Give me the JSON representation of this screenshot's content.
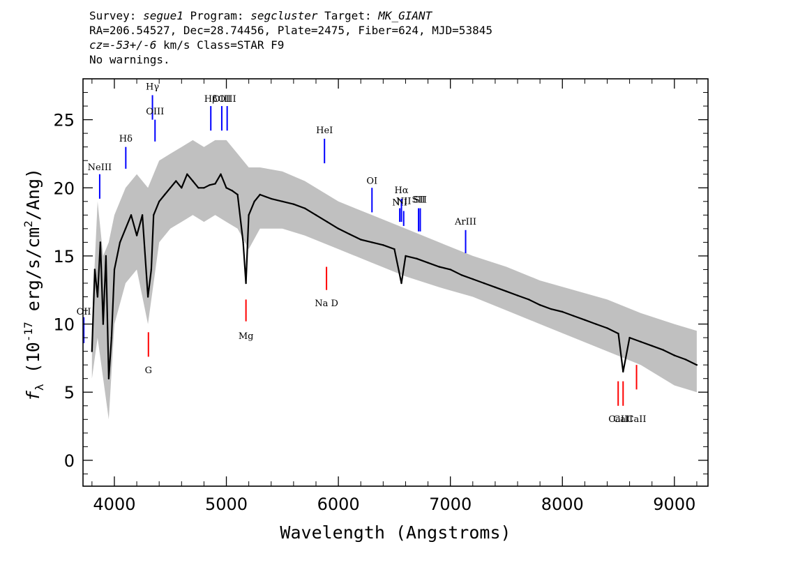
{
  "header": {
    "line1": [
      {
        "text": "Survey: ",
        "italic": false
      },
      {
        "text": "segue1",
        "italic": true
      },
      {
        "text": " Program: ",
        "italic": false
      },
      {
        "text": "segcluster",
        "italic": true
      },
      {
        "text": " Target: ",
        "italic": false
      },
      {
        "text": "MK_GIANT",
        "italic": true
      }
    ],
    "line2": "RA=206.54527, Dec=28.74456, Plate=2475, Fiber=624, MJD=53845",
    "line3": [
      {
        "text": "cz=-53+/-6",
        "italic": true
      },
      {
        "text": " km/s Class=STAR F9",
        "italic": false
      }
    ],
    "line4": "No warnings."
  },
  "chart_data": {
    "type": "line",
    "xlabel": "Wavelength (Angstroms)",
    "ylabel_prefix": "f",
    "ylabel_sub": "λ",
    "ylabel_main": " (10",
    "ylabel_exp": "-17",
    "ylabel_rest": " erg/s/cm",
    "ylabel_exp2": "2",
    "ylabel_end": "/Ang)",
    "xlim": [
      3720,
      9300
    ],
    "ylim": [
      -1.9,
      28
    ],
    "xticks": [
      4000,
      5000,
      6000,
      7000,
      8000,
      9000
    ],
    "yticks": [
      0,
      5,
      10,
      15,
      20,
      25
    ],
    "series": [
      {
        "role": "flux",
        "color": "#000000",
        "x": [
          3800,
          3825,
          3850,
          3875,
          3900,
          3925,
          3950,
          3975,
          4000,
          4050,
          4100,
          4150,
          4200,
          4250,
          4300,
          4330,
          4350,
          4400,
          4450,
          4500,
          4550,
          4600,
          4650,
          4700,
          4750,
          4800,
          4850,
          4900,
          4950,
          5000,
          5050,
          5100,
          5150,
          5175,
          5200,
          5250,
          5300,
          5400,
          5500,
          5600,
          5700,
          5800,
          5900,
          6000,
          6100,
          6200,
          6300,
          6400,
          6500,
          6563,
          6600,
          6700,
          6800,
          6900,
          7000,
          7100,
          7200,
          7300,
          7400,
          7500,
          7600,
          7700,
          7800,
          7900,
          8000,
          8100,
          8200,
          8300,
          8400,
          8500,
          8542,
          8600,
          8700,
          8800,
          8900,
          9000,
          9100,
          9200
        ],
        "y": [
          8,
          14,
          12,
          16,
          10,
          15,
          6,
          9,
          14,
          16,
          17,
          18,
          16.5,
          18,
          12,
          14,
          18,
          19,
          19.5,
          20,
          20.5,
          20,
          21,
          20.5,
          20,
          20,
          20.2,
          20.3,
          21,
          20,
          19.8,
          19.5,
          16,
          13,
          18,
          19,
          19.5,
          19.2,
          19,
          18.8,
          18.5,
          18,
          17.5,
          17,
          16.6,
          16.2,
          16,
          15.8,
          15.5,
          13,
          15,
          14.8,
          14.5,
          14.2,
          14,
          13.6,
          13.3,
          13,
          12.7,
          12.4,
          12.1,
          11.8,
          11.4,
          11.1,
          10.9,
          10.6,
          10.3,
          10,
          9.7,
          9.3,
          6.5,
          9,
          8.7,
          8.4,
          8.1,
          7.7,
          7.4,
          7
        ]
      },
      {
        "role": "error-band",
        "color": "#c0c0c0",
        "x": [
          3800,
          3850,
          3900,
          3950,
          4000,
          4100,
          4200,
          4300,
          4400,
          4500,
          4600,
          4700,
          4800,
          4900,
          5000,
          5100,
          5200,
          5300,
          5500,
          5700,
          6000,
          6300,
          6600,
          6900,
          7200,
          7500,
          7800,
          8100,
          8400,
          8700,
          9000,
          9200
        ],
        "lower": [
          6,
          9,
          6,
          3,
          10,
          13,
          14,
          10,
          16,
          17,
          17.5,
          18,
          17.5,
          18,
          17.5,
          17,
          15.5,
          17,
          17,
          16.5,
          15.5,
          14.5,
          13.5,
          12.7,
          12,
          11,
          10,
          9,
          8,
          7,
          5.5,
          5
        ],
        "upper": [
          10,
          19,
          15,
          16,
          18,
          20,
          21,
          20,
          22,
          22.5,
          23,
          23.5,
          23,
          23.5,
          23.5,
          22.5,
          21.5,
          21.5,
          21.2,
          20.5,
          19,
          18,
          17,
          16,
          15,
          14.2,
          13.2,
          12.5,
          11.8,
          10.8,
          10,
          9.5
        ]
      }
    ],
    "emission_lines": [
      {
        "label": "OII",
        "x": 3727,
        "y0": 8.6,
        "y1": 10.5,
        "ly": 10.7
      },
      {
        "label": "NeIII",
        "x": 3869,
        "y0": 19.2,
        "y1": 21.0,
        "ly": 21.3
      },
      {
        "label": "Hδ",
        "x": 4102,
        "y0": 21.4,
        "y1": 23.0,
        "ly": 23.4
      },
      {
        "label": "Hγ",
        "x": 4340,
        "y0": 25.0,
        "y1": 26.8,
        "ly": 27.2
      },
      {
        "label": "OIII",
        "x": 4363,
        "y0": 23.4,
        "y1": 25.0,
        "ly": 25.4
      },
      {
        "label": "Hβ",
        "x": 4861,
        "y0": 24.2,
        "y1": 26.0,
        "ly": 26.3
      },
      {
        "label": "OIII",
        "x": 4959,
        "y0": 24.2,
        "y1": 26.0,
        "ly": 26.3
      },
      {
        "label": "OIII",
        "x": 5007,
        "y0": 24.2,
        "y1": 26.0,
        "ly": 26.3
      },
      {
        "label": "HeI",
        "x": 5876,
        "y0": 21.8,
        "y1": 23.6,
        "ly": 24.0
      },
      {
        "label": "OI",
        "x": 6300,
        "y0": 18.2,
        "y1": 20.0,
        "ly": 20.3
      },
      {
        "label": "NII",
        "x": 6548,
        "y0": 17.5,
        "y1": 18.5,
        "ly": 18.7
      },
      {
        "label": "Hα",
        "x": 6563,
        "y0": 17.5,
        "y1": 19.2,
        "ly": 19.6
      },
      {
        "label": "NII",
        "x": 6583,
        "y0": 17.2,
        "y1": 18.3,
        "ly": 18.8
      },
      {
        "label": "SII",
        "x": 6716,
        "y0": 16.8,
        "y1": 18.5,
        "ly": 18.9
      },
      {
        "label": "SII",
        "x": 6731,
        "y0": 16.8,
        "y1": 18.5,
        "ly": 18.9
      },
      {
        "label": "ArIII",
        "x": 7136,
        "y0": 15.2,
        "y1": 16.9,
        "ly": 17.3
      }
    ],
    "absorption_lines": [
      {
        "label": "G",
        "x": 4304,
        "y0": 7.6,
        "y1": 9.4,
        "ly": 6.4
      },
      {
        "label": "Mg",
        "x": 5175,
        "y0": 10.2,
        "y1": 11.8,
        "ly": 8.9
      },
      {
        "label": "Na D",
        "x": 5894,
        "y0": 12.5,
        "y1": 14.2,
        "ly": 11.3
      },
      {
        "label": "CaII",
        "x": 8498,
        "y0": 4.0,
        "y1": 5.8,
        "ly": 2.8
      },
      {
        "label": "CaII",
        "x": 8542,
        "y0": 4.0,
        "y1": 5.8,
        "ly": 2.8
      },
      {
        "label": "CaII",
        "x": 8662,
        "y0": 5.2,
        "y1": 7.0,
        "ly": 2.8
      }
    ],
    "colors": {
      "emission": "#0000ff",
      "absorption": "#ff0000",
      "axis": "#000000"
    }
  }
}
